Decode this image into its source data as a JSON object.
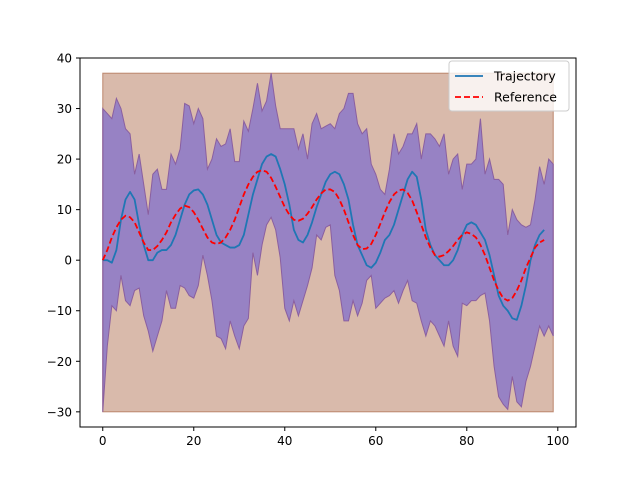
{
  "chart_data": {
    "type": "line",
    "title": "",
    "xlabel": "",
    "ylabel": "",
    "xlim": [
      -5,
      104
    ],
    "ylim": [
      -33,
      40
    ],
    "xticks": [
      0,
      20,
      40,
      60,
      80,
      100
    ],
    "yticks": [
      -30,
      -20,
      -10,
      0,
      10,
      20,
      30,
      40
    ],
    "grid": false,
    "legend_position": "top-right",
    "colors": {
      "trajectory": "#1f77b4",
      "reference": "#ff0000",
      "band_fill": "#0000ff",
      "band_edge": "#8a5fa0",
      "bounds_fill": "#a0522d",
      "bounds_edge": "#a0522d"
    },
    "bounds_band": {
      "x": [
        0,
        99
      ],
      "lower": -30,
      "upper": 37
    },
    "x_step": 1,
    "series": [
      {
        "name": "Trajectory",
        "style": "solid",
        "values": [
          0,
          0,
          -0.5,
          2,
          8,
          12,
          13.5,
          12,
          7,
          3,
          0,
          0,
          1.5,
          2,
          2,
          3,
          5,
          8,
          11,
          13,
          13.8,
          14,
          13,
          11,
          8,
          5,
          3.5,
          3,
          2.5,
          2.5,
          3,
          5,
          9,
          13,
          16,
          19,
          20.5,
          21,
          20.5,
          18,
          15,
          11,
          6,
          4,
          3.5,
          5,
          7.5,
          10.5,
          13,
          15.5,
          17,
          17.5,
          17,
          15,
          12,
          7,
          3,
          1,
          -1,
          -1.5,
          -0.5,
          1.5,
          4,
          5,
          7,
          10,
          13,
          16,
          17.5,
          16.5,
          12,
          6,
          3,
          1,
          0,
          -1,
          -1,
          0,
          2,
          5,
          7,
          7.5,
          7,
          5.5,
          4,
          1,
          -3,
          -7,
          -9,
          -10,
          -11.5,
          -11.8,
          -9,
          -5,
          0,
          3,
          5,
          6
        ]
      },
      {
        "name": "Reference",
        "style": "dashed",
        "values": [
          0,
          2,
          4.5,
          6.5,
          8,
          8.8,
          8.5,
          7.5,
          5.5,
          3.5,
          2,
          2,
          2.8,
          4,
          5.5,
          7.5,
          9,
          10.2,
          10.8,
          10.5,
          9.5,
          8,
          6.2,
          4.5,
          3.5,
          3.2,
          3.5,
          4.5,
          6,
          8,
          10.5,
          13,
          15,
          16.5,
          17.5,
          17.8,
          17.5,
          16.3,
          14.5,
          12.5,
          10.5,
          9,
          8,
          7.8,
          8.2,
          9.2,
          10.5,
          12,
          13.2,
          14,
          14,
          13.5,
          12,
          10,
          7.5,
          5,
          3,
          2.2,
          2.3,
          3.2,
          5,
          7.2,
          9.5,
          11.5,
          13,
          13.8,
          14,
          13.3,
          11.8,
          9.5,
          7,
          4.5,
          2.5,
          1,
          0.7,
          1,
          1.8,
          2.8,
          4,
          5,
          5.5,
          5.2,
          4.5,
          3,
          1,
          -1.5,
          -4,
          -6,
          -7.5,
          -8,
          -7.5,
          -6,
          -4,
          -1.5,
          0.5,
          2.5,
          3.5,
          4
        ]
      },
      {
        "name": "upper envelope",
        "values": [
          30,
          29,
          28,
          32,
          30,
          26,
          25,
          17,
          21,
          15,
          9,
          17,
          18,
          14,
          14,
          21,
          19,
          22,
          31,
          30.5,
          27,
          30,
          28,
          18,
          20,
          24,
          22.5,
          23,
          26,
          19.5,
          19.5,
          27.5,
          25.5,
          30,
          35,
          29.5,
          31.5,
          37,
          30.5,
          26,
          26,
          26,
          26,
          22,
          25,
          20,
          27,
          29,
          26,
          26.5,
          27,
          26,
          29,
          30,
          33,
          33,
          27,
          25,
          26,
          19,
          17,
          14,
          13,
          18,
          25,
          21,
          22.5,
          25,
          25,
          27,
          20,
          25,
          25,
          24,
          22.5,
          25,
          17,
          20,
          21,
          14,
          19,
          19,
          20,
          28,
          17,
          20,
          16,
          16,
          15,
          5,
          10,
          8,
          7,
          6.5,
          7,
          12,
          18.5,
          15,
          20,
          19
        ]
      },
      {
        "name": "lower envelope",
        "values": [
          -30,
          -17,
          -9,
          -10,
          -3,
          -8,
          -9,
          -6,
          -5.5,
          -11,
          -14,
          -18,
          -15,
          -12,
          -6,
          -9.5,
          -9.5,
          -5,
          -5.5,
          -7,
          -7.5,
          -5,
          1,
          -3,
          -8,
          -15,
          -15.5,
          -17.5,
          -12,
          -15,
          -17.5,
          -13,
          -11.5,
          1.5,
          -3,
          3,
          7,
          8.5,
          6,
          0.5,
          -9.5,
          -12,
          -8,
          -11,
          -8,
          -5,
          -1.5,
          5,
          4,
          6.5,
          7,
          -3,
          -6,
          -12,
          -12,
          -8,
          -11,
          -8.5,
          -4,
          -3,
          -9.5,
          -8.5,
          -7.5,
          -7,
          -6,
          -8.5,
          -6,
          -4,
          -8,
          -8.5,
          -12,
          -15,
          -12,
          -13,
          -15,
          -17,
          -12,
          -17,
          -19,
          -8.5,
          -9,
          -8,
          -8,
          -7,
          -6.5,
          -12,
          -21,
          -27,
          -28.5,
          -29.5,
          -23,
          -28,
          -29,
          -24,
          -21,
          -17,
          -13,
          -15,
          -13,
          -15
        ]
      }
    ]
  }
}
